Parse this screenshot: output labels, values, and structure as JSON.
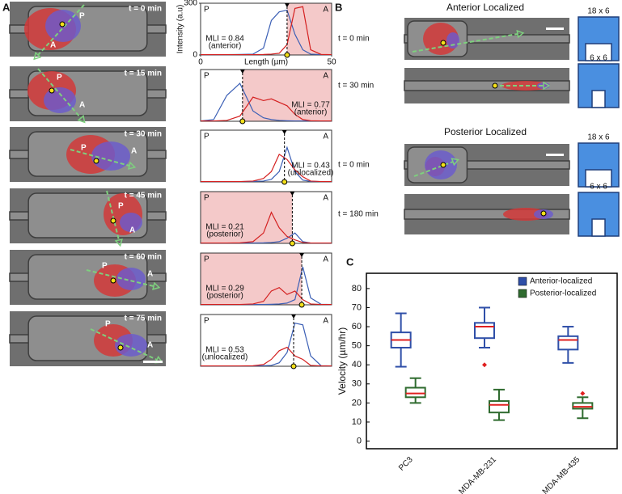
{
  "panel_a": {
    "label": "A",
    "frames": [
      {
        "time": "t = 0 min",
        "posterior": "P",
        "anterior": "A"
      },
      {
        "time": "t = 15 min",
        "posterior": "P",
        "anterior": "A"
      },
      {
        "time": "t = 30 min",
        "posterior": "P",
        "anterior": "A"
      },
      {
        "time": "t = 45 min",
        "posterior": "P",
        "anterior": "A"
      },
      {
        "time": "t = 60 min",
        "posterior": "P",
        "anterior": "A"
      },
      {
        "time": "t = 75 min",
        "posterior": "P",
        "anterior": "A"
      }
    ]
  },
  "panel_b": {
    "label": "B",
    "groups": [
      {
        "title": "Anterior Localized",
        "rows": [
          {
            "time": "t = 0 min",
            "icon": "18 x 6"
          },
          {
            "time": "t = 30 min",
            "icon": "6 x 6"
          }
        ]
      },
      {
        "title": "Posterior Localized",
        "rows": [
          {
            "time": "t = 0 min",
            "icon": "18 x 6"
          },
          {
            "time": "t = 180 min",
            "icon": "6 x 6"
          }
        ]
      }
    ]
  },
  "panel_c": {
    "label": "C"
  },
  "chart_data": [
    {
      "type": "line",
      "xlabel": "Length (µm)",
      "ylabel": "Intensity (a.u)",
      "xlim": [
        0,
        50
      ],
      "ylim": [
        0,
        300
      ],
      "xticks": [
        0,
        50
      ],
      "yticks": [
        0,
        300
      ],
      "left_label": "P",
      "right_label": "A",
      "annotation": "MLI = 0.84",
      "annotation_note": "(anterior)",
      "shade": "anterior",
      "divider": 33,
      "x": [
        0,
        5,
        10,
        15,
        20,
        24,
        27,
        30,
        33,
        36,
        39,
        42,
        46,
        50
      ],
      "series": [
        {
          "color": "#3b5fb5",
          "values": [
            2,
            2,
            2,
            3,
            5,
            40,
            200,
            250,
            260,
            120,
            30,
            5,
            2,
            2
          ]
        },
        {
          "color": "#d42020",
          "values": [
            2,
            2,
            2,
            2,
            2,
            3,
            5,
            10,
            60,
            270,
            280,
            30,
            3,
            2
          ]
        }
      ]
    },
    {
      "type": "line",
      "xlim": [
        0,
        50
      ],
      "ylim": [
        0,
        300
      ],
      "left_label": "P",
      "right_label": "A",
      "annotation": "MLI = 0.77",
      "annotation_note": "(anterior)",
      "shade": "anterior",
      "divider": 16,
      "x": [
        0,
        5,
        10,
        15,
        20,
        24,
        27,
        30,
        33,
        36,
        39,
        42,
        46,
        50
      ],
      "series": [
        {
          "color": "#3b5fb5",
          "values": [
            2,
            10,
            150,
            220,
            60,
            20,
            10,
            5,
            3,
            2,
            2,
            2,
            2,
            2
          ]
        },
        {
          "color": "#d42020",
          "values": [
            2,
            2,
            5,
            30,
            140,
            120,
            130,
            110,
            90,
            40,
            10,
            3,
            2,
            2
          ]
        }
      ]
    },
    {
      "type": "line",
      "xlim": [
        0,
        50
      ],
      "ylim": [
        0,
        300
      ],
      "left_label": "P",
      "right_label": "A",
      "annotation": "MLI = 0.43",
      "annotation_note": "(unlocalized)",
      "shade": "none",
      "divider": 32,
      "x": [
        0,
        5,
        10,
        15,
        20,
        24,
        27,
        30,
        33,
        36,
        39,
        42,
        46,
        50
      ],
      "series": [
        {
          "color": "#3b5fb5",
          "values": [
            2,
            2,
            2,
            2,
            3,
            5,
            15,
            60,
            200,
            60,
            10,
            3,
            2,
            2
          ]
        },
        {
          "color": "#d42020",
          "values": [
            2,
            2,
            2,
            2,
            5,
            20,
            60,
            160,
            130,
            70,
            30,
            5,
            2,
            2
          ]
        }
      ]
    },
    {
      "type": "line",
      "xlim": [
        0,
        50
      ],
      "ylim": [
        0,
        300
      ],
      "left_label": "P",
      "right_label": "A",
      "annotation": "MLI = 0.21",
      "annotation_note": "(posterior)",
      "shade": "posterior",
      "divider": 35,
      "x": [
        0,
        5,
        10,
        15,
        20,
        24,
        27,
        30,
        33,
        36,
        39,
        42,
        46,
        50
      ],
      "series": [
        {
          "color": "#3b5fb5",
          "values": [
            2,
            2,
            2,
            2,
            2,
            3,
            5,
            10,
            30,
            60,
            10,
            2,
            2,
            2
          ]
        },
        {
          "color": "#d42020",
          "values": [
            2,
            2,
            2,
            3,
            10,
            60,
            180,
            90,
            40,
            20,
            5,
            2,
            2,
            2
          ]
        }
      ]
    },
    {
      "type": "line",
      "xlim": [
        0,
        50
      ],
      "ylim": [
        0,
        300
      ],
      "left_label": "P",
      "right_label": "A",
      "annotation": "MLI = 0.29",
      "annotation_note": "(posterior)",
      "shade": "posterior",
      "divider": 38.6,
      "x": [
        0,
        5,
        10,
        15,
        20,
        24,
        27,
        30,
        33,
        36,
        39,
        42,
        46,
        50
      ],
      "series": [
        {
          "color": "#3b5fb5",
          "values": [
            2,
            2,
            2,
            2,
            2,
            2,
            3,
            5,
            10,
            30,
            220,
            40,
            3,
            2
          ]
        },
        {
          "color": "#d42020",
          "values": [
            2,
            2,
            2,
            2,
            5,
            20,
            80,
            100,
            60,
            80,
            30,
            5,
            2,
            2
          ]
        }
      ]
    },
    {
      "type": "line",
      "xlim": [
        0,
        50
      ],
      "ylim": [
        0,
        300
      ],
      "left_label": "P",
      "right_label": "A",
      "annotation": "MLI = 0.53",
      "annotation_note": "(unlocalized)",
      "shade": "none",
      "divider": 35.5,
      "x": [
        0,
        5,
        10,
        15,
        20,
        24,
        27,
        30,
        33,
        36,
        39,
        42,
        46,
        50
      ],
      "series": [
        {
          "color": "#3b5fb5",
          "values": [
            2,
            2,
            2,
            2,
            2,
            3,
            5,
            20,
            80,
            250,
            240,
            60,
            3,
            2
          ]
        },
        {
          "color": "#d42020",
          "values": [
            2,
            2,
            2,
            2,
            3,
            10,
            40,
            90,
            110,
            60,
            40,
            5,
            2,
            2
          ]
        }
      ]
    },
    {
      "type": "box",
      "ylabel": "Velocity (µm/hr)",
      "ylim": [
        -4,
        88
      ],
      "yticks": [
        0,
        10,
        20,
        30,
        40,
        50,
        60,
        70,
        80
      ],
      "categories": [
        "PC3",
        "MDA-MB-231",
        "MDA-MB-435"
      ],
      "median_color": "#e02020",
      "legend": "top-right",
      "series": [
        {
          "name": "Anterior-localized",
          "color": "#2f4fa8",
          "whislo": [
            39,
            49,
            41
          ],
          "q1": [
            49,
            54,
            48
          ],
          "median": [
            53,
            60,
            53
          ],
          "q3": [
            57,
            62,
            55
          ],
          "whishi": [
            67,
            70,
            60
          ],
          "outliers": [
            [],
            [
              40
            ],
            []
          ]
        },
        {
          "name": "Posterior-localized",
          "color": "#2f6b2f",
          "whislo": [
            20,
            11,
            12
          ],
          "q1": [
            23,
            15,
            17
          ],
          "median": [
            25,
            19,
            18
          ],
          "q3": [
            28,
            21,
            20
          ],
          "whishi": [
            33,
            27,
            23
          ],
          "outliers": [
            [],
            [],
            [
              25
            ]
          ]
        }
      ]
    }
  ]
}
